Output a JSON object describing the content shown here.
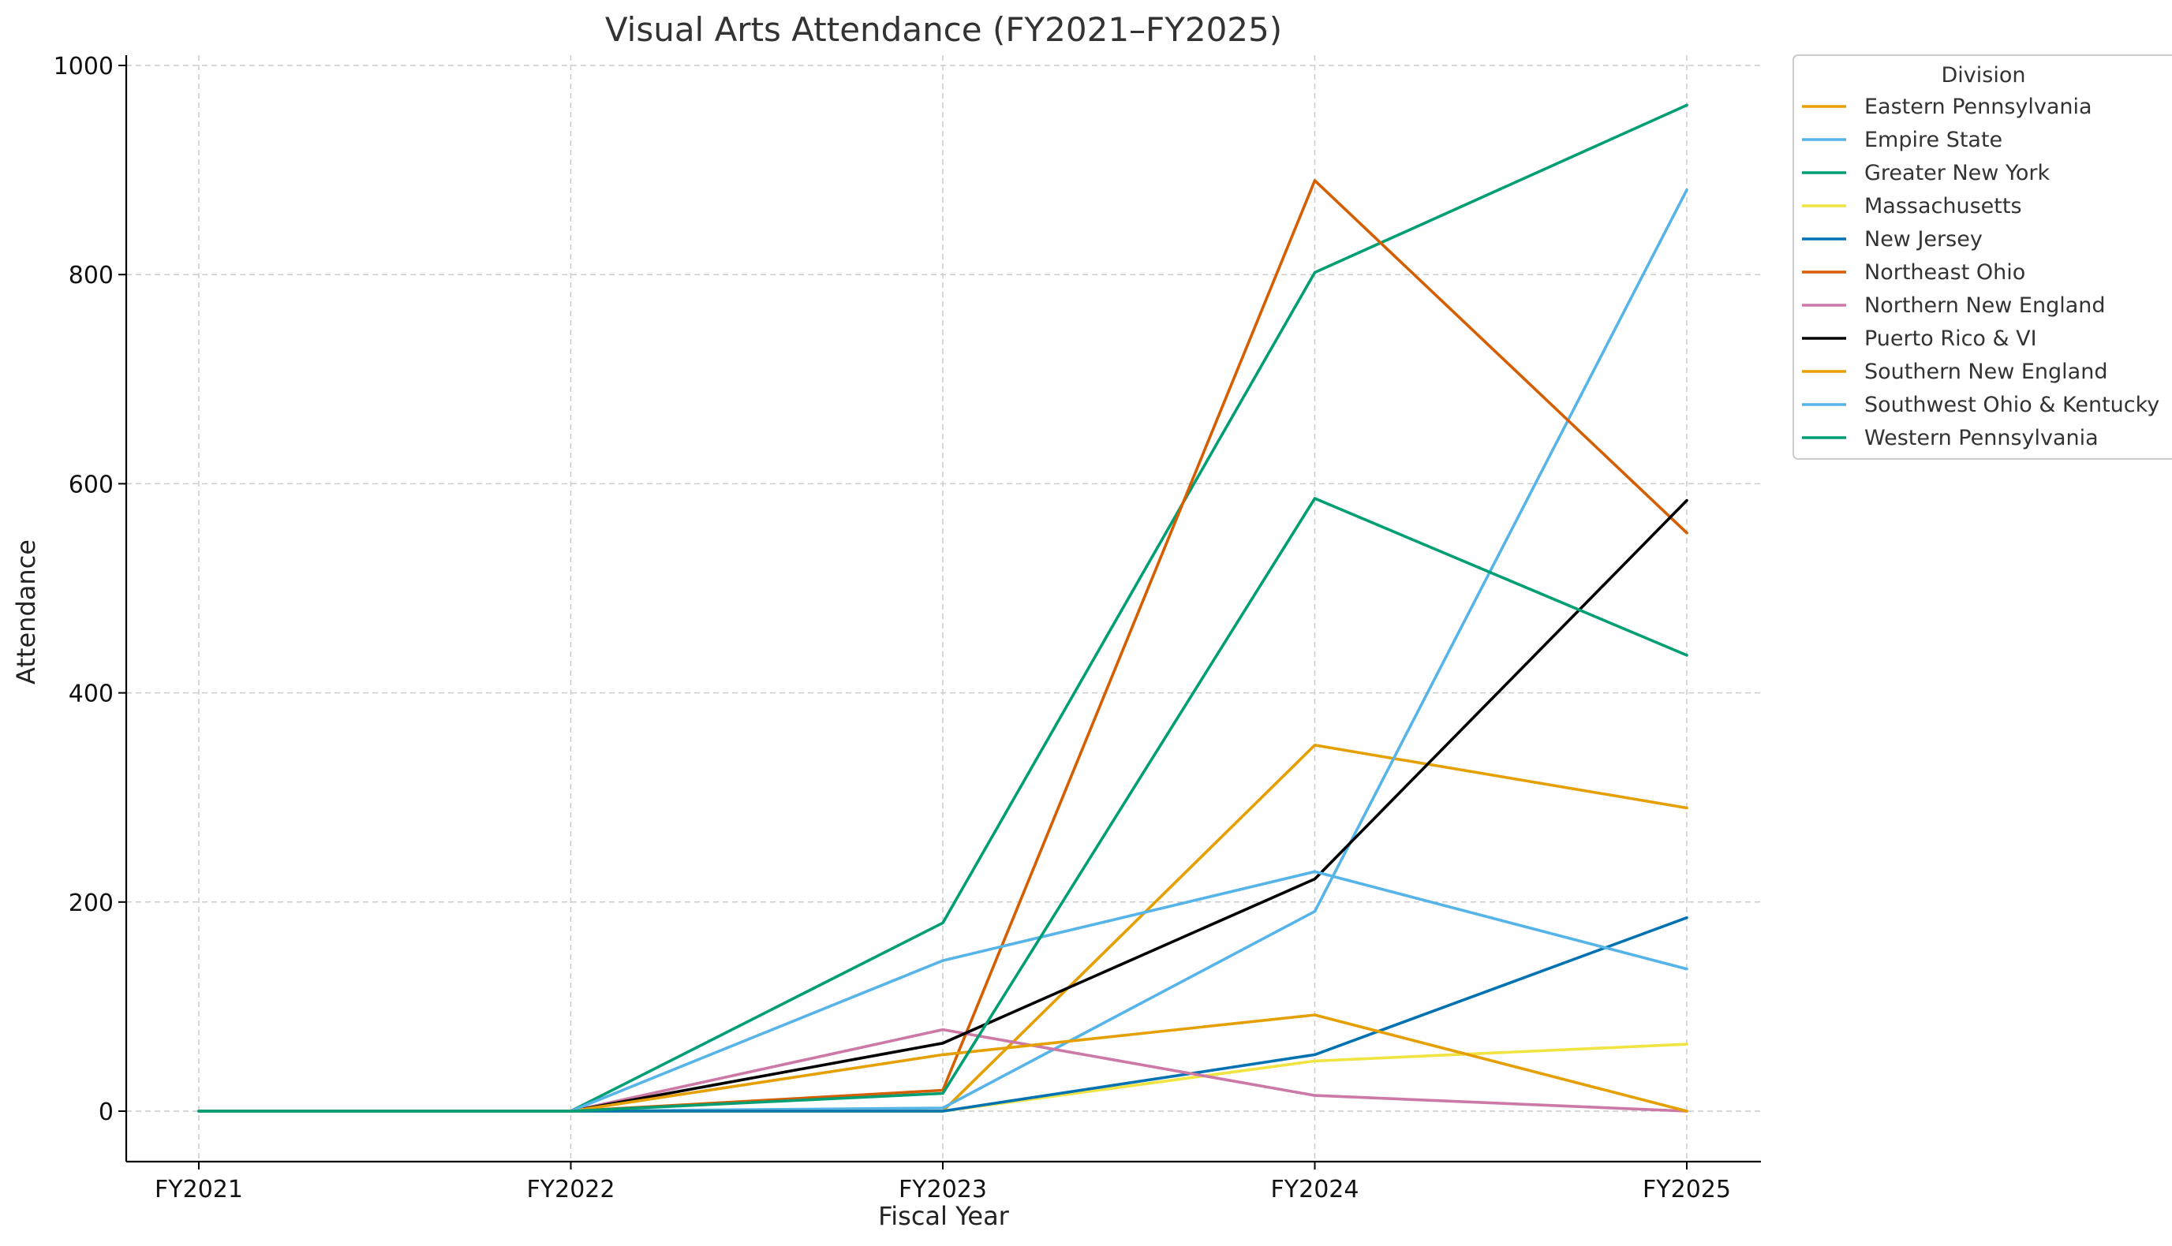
{
  "chart_data": {
    "type": "line",
    "title": "Visual Arts Attendance (FY2021–FY2025)",
    "xlabel": "Fiscal Year",
    "ylabel": "Attendance",
    "categories": [
      "FY2021",
      "FY2022",
      "FY2023",
      "FY2024",
      "FY2025"
    ],
    "ylim": [
      -48,
      1010
    ],
    "yticks": [
      0,
      200,
      400,
      600,
      800,
      1000
    ],
    "grid": true,
    "legend": {
      "title": "Division",
      "placement": "outside-top-right"
    },
    "series": [
      {
        "name": "Eastern Pennsylvania",
        "color": "#E69F00",
        "values": [
          0,
          0,
          0,
          350,
          290
        ]
      },
      {
        "name": "Empire State",
        "color": "#56B4E9",
        "values": [
          0,
          0,
          3,
          191,
          881
        ]
      },
      {
        "name": "Greater New York",
        "color": "#009E73",
        "values": [
          0,
          0,
          180,
          802,
          962
        ]
      },
      {
        "name": "Massachusetts",
        "color": "#F0E442",
        "values": [
          0,
          0,
          0,
          48,
          64
        ]
      },
      {
        "name": "New Jersey",
        "color": "#0072B2",
        "values": [
          0,
          0,
          0,
          54,
          185
        ]
      },
      {
        "name": "Northeast Ohio",
        "color": "#D55E00",
        "values": [
          0,
          0,
          20,
          890,
          553
        ]
      },
      {
        "name": "Northern New England",
        "color": "#CC79A7",
        "values": [
          0,
          0,
          78,
          15,
          0
        ]
      },
      {
        "name": "Puerto Rico & VI",
        "color": "#000000",
        "values": [
          0,
          0,
          65,
          222,
          584
        ]
      },
      {
        "name": "Southern New England",
        "color": "#E69F00",
        "values": [
          0,
          0,
          54,
          92,
          0
        ]
      },
      {
        "name": "Southwest Ohio & Kentucky",
        "color": "#56B4E9",
        "values": [
          0,
          0,
          144,
          229,
          136
        ]
      },
      {
        "name": "Western Pennsylvania",
        "color": "#009E73",
        "values": [
          0,
          0,
          17,
          586,
          436
        ]
      }
    ]
  }
}
